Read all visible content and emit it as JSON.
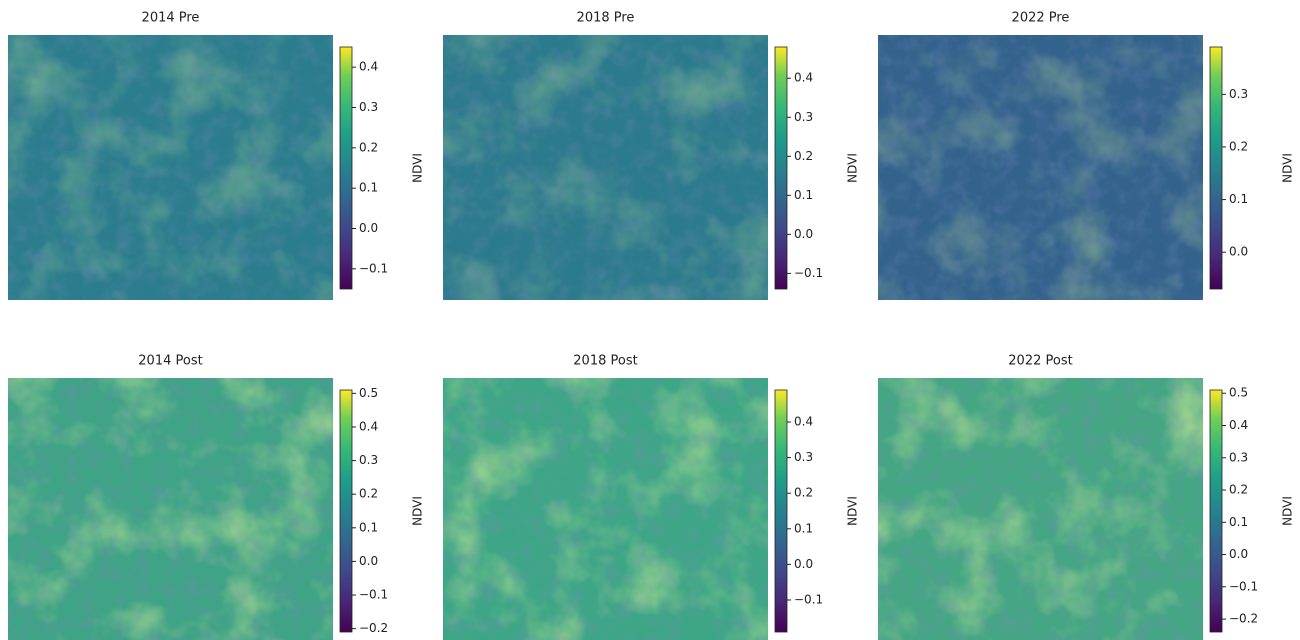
{
  "chart_data": [
    {
      "type": "image",
      "title": "2014 Pre",
      "colorbar_label": "NDVI",
      "colormap": "viridis",
      "clim": [
        -0.15,
        0.45
      ],
      "cticks": [
        {
          "value": -0.1,
          "label": "−0.1"
        },
        {
          "value": 0,
          "label": "0.0"
        },
        0.1,
        0.2,
        0.3,
        0.4
      ]
    },
    {
      "type": "image",
      "title": "2018 Pre",
      "colorbar_label": "NDVI",
      "colormap": "viridis",
      "clim": [
        -0.14,
        0.48
      ],
      "cticks": [
        {
          "value": -0.1,
          "label": "−0.1"
        },
        {
          "value": 0,
          "label": "0.0"
        },
        0.1,
        0.2,
        0.3,
        0.4
      ]
    },
    {
      "type": "image",
      "title": "2022 Pre",
      "colorbar_label": "NDVI",
      "colormap": "viridis",
      "clim": [
        -0.07,
        0.39
      ],
      "cticks": [
        {
          "value": 0,
          "label": "0.0"
        },
        0.1,
        0.2,
        0.3
      ]
    },
    {
      "type": "image",
      "title": "2014 Post",
      "colorbar_label": "NDVI",
      "colormap": "viridis",
      "clim": [
        -0.21,
        0.51
      ],
      "cticks": [
        {
          "value": -0.2,
          "label": "−0.2"
        },
        {
          "value": -0.1,
          "label": "−0.1"
        },
        {
          "value": 0,
          "label": "0.0"
        },
        0.1,
        0.2,
        0.3,
        0.4,
        0.5
      ]
    },
    {
      "type": "image",
      "title": "2018 Post",
      "colorbar_label": "NDVI",
      "colormap": "viridis",
      "clim": [
        -0.19,
        0.49
      ],
      "cticks": [
        {
          "value": -0.1,
          "label": "−0.1"
        },
        {
          "value": 0,
          "label": "0.0"
        },
        0.1,
        0.2,
        0.3,
        0.4
      ]
    },
    {
      "type": "image",
      "title": "2022 Post",
      "colorbar_label": "NDVI",
      "colormap": "viridis",
      "clim": [
        -0.24,
        0.51
      ],
      "cticks": [
        {
          "value": -0.2,
          "label": "−0.2"
        },
        {
          "value": -0.1,
          "label": "−0.1"
        },
        {
          "value": 0,
          "label": "0.0"
        },
        0.1,
        0.2,
        0.3,
        0.4,
        0.5
      ]
    }
  ]
}
